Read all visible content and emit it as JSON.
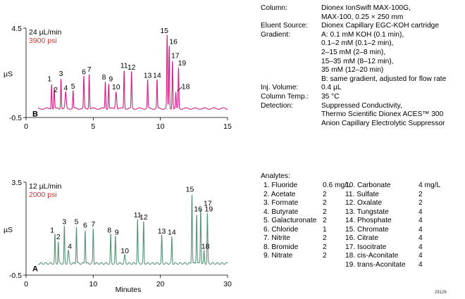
{
  "chart_data": [
    {
      "type": "line",
      "panel_label": "B",
      "flow_rate": "24 µL/min",
      "pressure": "3900 psi",
      "ylabel": "µS",
      "xlabel": "",
      "xlim": [
        0,
        15
      ],
      "ylim": [
        -0.5,
        4.5
      ],
      "x_ticks": [
        "0",
        "5",
        "10",
        "15"
      ],
      "y_ticks": [
        "4.5",
        "-0.5"
      ],
      "color": "#d11f84",
      "baseline": 0,
      "peaks": [
        {
          "label": "1",
          "x": 1.9,
          "y": 1.4
        },
        {
          "label": "2",
          "x": 2.1,
          "y": 1.15
        },
        {
          "label": "3",
          "x": 2.6,
          "y": 1.7
        },
        {
          "label": "4",
          "x": 2.95,
          "y": 0.9
        },
        {
          "label": "5",
          "x": 3.5,
          "y": 1.0
        },
        {
          "label": "6",
          "x": 4.3,
          "y": 1.8
        },
        {
          "label": "7",
          "x": 4.7,
          "y": 1.95
        },
        {
          "label": "8",
          "x": 5.9,
          "y": 1.5
        },
        {
          "label": "9",
          "x": 6.15,
          "y": 1.4
        },
        {
          "label": "10",
          "x": 6.7,
          "y": 0.95
        },
        {
          "label": "11",
          "x": 7.3,
          "y": 2.15
        },
        {
          "label": "12",
          "x": 7.85,
          "y": 2.05
        },
        {
          "label": "13",
          "x": 9.05,
          "y": 1.6
        },
        {
          "label": "14",
          "x": 9.75,
          "y": 1.6
        },
        {
          "label": "15",
          "x": 10.5,
          "y": 4.1
        },
        {
          "label": "16",
          "x": 10.65,
          "y": 3.5
        },
        {
          "label": "17",
          "x": 10.9,
          "y": 2.7
        },
        {
          "label": "18",
          "x": 11.15,
          "y": 0.9
        },
        {
          "label": "19",
          "x": 11.35,
          "y": 2.3
        }
      ]
    },
    {
      "type": "line",
      "panel_label": "A",
      "flow_rate": "12 µL/min",
      "pressure": "2000 psi",
      "ylabel": "µS",
      "xlabel": "Minutes",
      "xlim": [
        0,
        30
      ],
      "ylim": [
        -0.5,
        3.5
      ],
      "x_ticks": [
        "0",
        "10",
        "20",
        "30"
      ],
      "y_ticks": [
        "3.5",
        "-0.5"
      ],
      "color": "#5a9478",
      "baseline": 0,
      "peaks": [
        {
          "label": "1",
          "x": 4.3,
          "y": 1.25
        },
        {
          "label": "2",
          "x": 4.8,
          "y": 0.95
        },
        {
          "label": "3",
          "x": 5.7,
          "y": 1.6
        },
        {
          "label": "4",
          "x": 6.3,
          "y": 0.55
        },
        {
          "label": "5",
          "x": 7.5,
          "y": 1.6
        },
        {
          "label": "6",
          "x": 8.8,
          "y": 1.45
        },
        {
          "label": "7",
          "x": 10.0,
          "y": 1.5
        },
        {
          "label": "8",
          "x": 12.6,
          "y": 1.25
        },
        {
          "label": "9",
          "x": 13.3,
          "y": 1.15
        },
        {
          "label": "10",
          "x": 14.7,
          "y": 0.35
        },
        {
          "label": "11",
          "x": 16.6,
          "y": 1.9
        },
        {
          "label": "12",
          "x": 17.5,
          "y": 1.8
        },
        {
          "label": "13",
          "x": 20.2,
          "y": 1.2
        },
        {
          "label": "14",
          "x": 21.7,
          "y": 1.15
        },
        {
          "label": "15",
          "x": 24.7,
          "y": 3.0
        },
        {
          "label": "16",
          "x": 25.4,
          "y": 2.15
        },
        {
          "label": "17",
          "x": 26.0,
          "y": 2.4
        },
        {
          "label": "18",
          "x": 26.5,
          "y": 0.55
        },
        {
          "label": "19",
          "x": 27.0,
          "y": 2.15
        }
      ]
    }
  ],
  "conditions": [
    {
      "label": "Column:",
      "lines": [
        "Dionex IonSwift MAX-100G,",
        "MAX-100, 0.25 × 250 mm"
      ]
    },
    {
      "label": "Eluent Source:",
      "lines": [
        "Dionex Capillary EGC-KOH cartridge"
      ]
    },
    {
      "label": "Gradient:",
      "lines": [
        "A: 0.1 mM KOH (0.1 min),",
        "0.1–2 mM (0.1–2 min),",
        "2–15 mM (2–8 min),",
        "15–35 mM (8–12 min),",
        "35 mM (12–20 min)",
        "B: same gradient, adjusted for flow rate"
      ]
    },
    {
      "label": "Inj. Volume:",
      "lines": [
        "0.4 µL"
      ]
    },
    {
      "label": "Column Temp.:",
      "lines": [
        "35 °C"
      ]
    },
    {
      "label": "Detection:",
      "lines": [
        "Suppressed Conductivity,",
        "Thermo Scientific Dionex ACES™ 300",
        "Anion Capillary Electrolytic Suppressor"
      ]
    }
  ],
  "analytes": {
    "title": "Analytes:",
    "left": [
      {
        "name": "1. Fluoride",
        "conc": "0.6 mg/L"
      },
      {
        "name": "2. Acetate",
        "conc": "2"
      },
      {
        "name": "3. Formate",
        "conc": "2"
      },
      {
        "name": "4. Butyrate",
        "conc": "2"
      },
      {
        "name": "5. Galacturonate",
        "conc": "2"
      },
      {
        "name": "6. Chloride",
        "conc": "1"
      },
      {
        "name": "7. Nitrite",
        "conc": "2"
      },
      {
        "name": "8. Bromide",
        "conc": "2"
      },
      {
        "name": "9. Nitrate",
        "conc": "2"
      }
    ],
    "right": [
      {
        "name": "10. Carbonate",
        "conc": "4 mg/L"
      },
      {
        "name": "11. Sulfate",
        "conc": "2"
      },
      {
        "name": "12. Oxalate",
        "conc": "2"
      },
      {
        "name": "13. Tungstate",
        "conc": "4"
      },
      {
        "name": "14. Phosphate",
        "conc": "4"
      },
      {
        "name": "15. Chromate",
        "conc": "4"
      },
      {
        "name": "16. Citrate",
        "conc": "4"
      },
      {
        "name": "17. Isocitrate",
        "conc": "4"
      },
      {
        "name": "18. cis-Aconitate",
        "conc": "4"
      },
      {
        "name": "19. trans-Aconitate",
        "conc": "4"
      }
    ]
  },
  "figure_id": "29126"
}
